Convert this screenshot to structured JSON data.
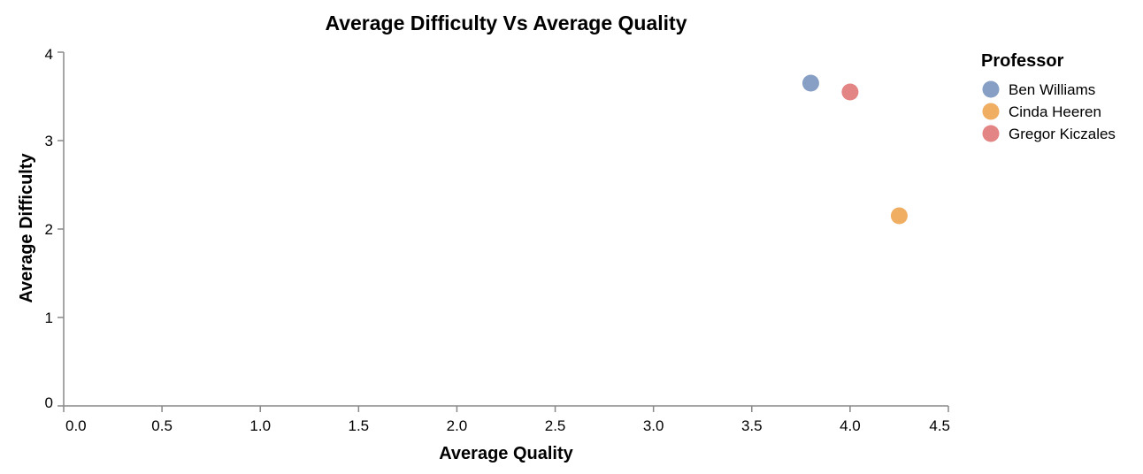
{
  "chart_data": {
    "type": "scatter",
    "title": "Average Difficulty Vs Average Quality",
    "xlabel": "Average Quality",
    "ylabel": "Average Difficulty",
    "xlim": [
      0,
      4.5
    ],
    "ylim": [
      0,
      4
    ],
    "x_ticks": [
      "0.0",
      "0.5",
      "1.0",
      "1.5",
      "2.0",
      "2.5",
      "3.0",
      "3.5",
      "4.0",
      "4.5"
    ],
    "y_ticks": [
      "0",
      "1",
      "2",
      "3",
      "4"
    ],
    "grid": false,
    "legend": {
      "title": "Professor",
      "placement": "right"
    },
    "series": [
      {
        "name": "Ben Williams",
        "color": "#879fc4",
        "points": [
          {
            "x": 3.8,
            "y": 3.65
          }
        ]
      },
      {
        "name": "Cinda Heeren",
        "color": "#efae62",
        "points": [
          {
            "x": 4.25,
            "y": 2.15
          }
        ]
      },
      {
        "name": "Gregor Kiczales",
        "color": "#e38585",
        "points": [
          {
            "x": 4.0,
            "y": 3.55
          }
        ]
      }
    ]
  }
}
